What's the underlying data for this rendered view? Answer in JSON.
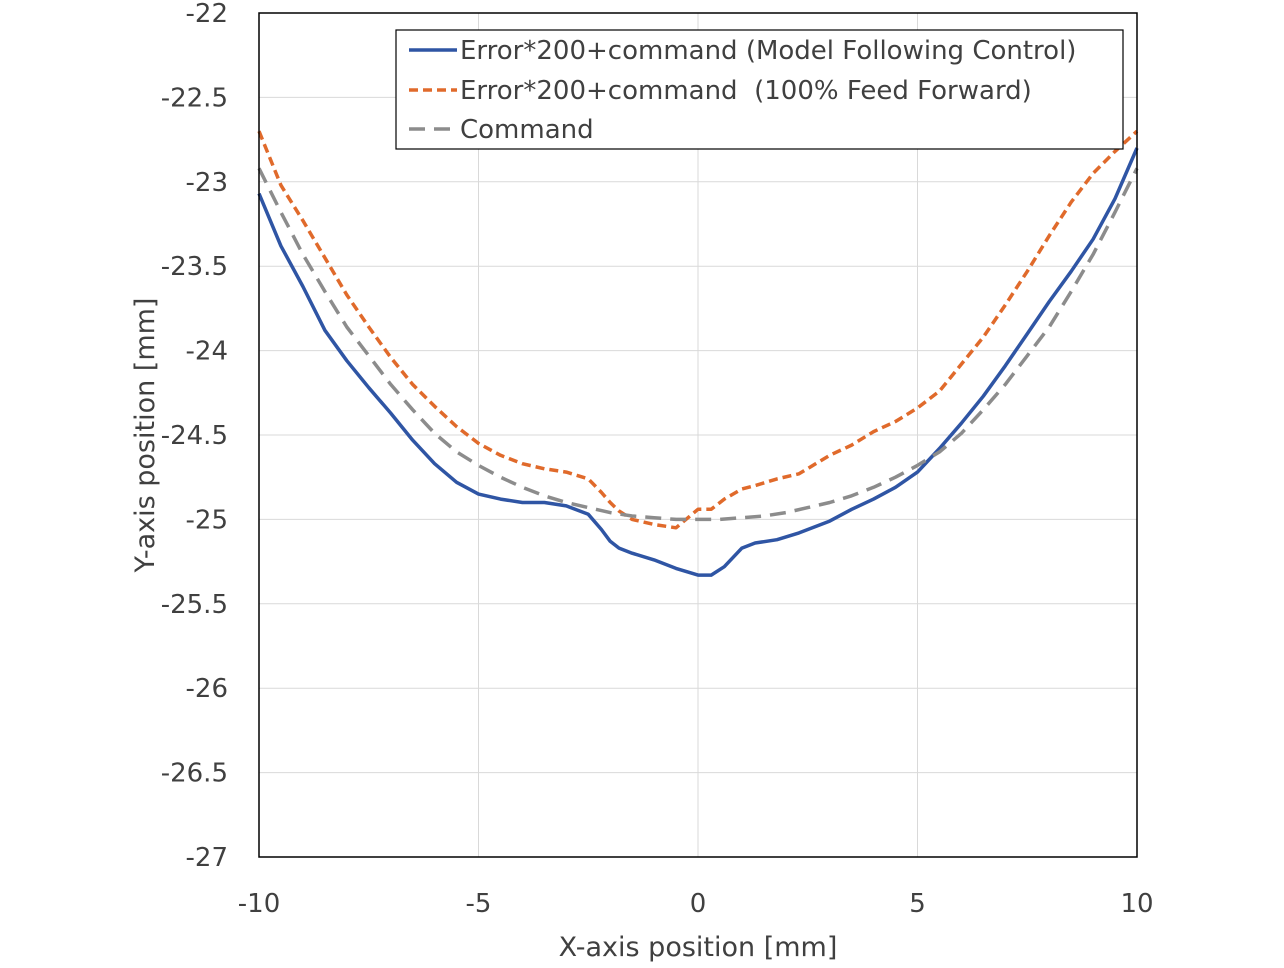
{
  "chart_data": {
    "type": "line",
    "title": "",
    "xlabel": "X-axis position [mm]",
    "ylabel": "Y-axis  position [mm]",
    "xlim": [
      -10,
      10
    ],
    "ylim": [
      -27,
      -22
    ],
    "x_ticks": [
      -10,
      -5,
      0,
      5,
      10
    ],
    "y_ticks": [
      -22,
      -22.5,
      -23,
      -23.5,
      -24,
      -24.5,
      -25,
      -25.5,
      -26,
      -26.5,
      -27
    ],
    "x_tick_labels": [
      "-10",
      "-5",
      "0",
      "5",
      "10"
    ],
    "y_tick_labels": [
      "-22",
      "-22.5",
      "-23",
      "-23.5",
      "-24",
      "-24.5",
      "-25",
      "-25.5",
      "-26",
      "-26.5",
      "-27"
    ],
    "grid": true,
    "legend_position": "top-right",
    "series": [
      {
        "name": "Error*200+command (Model Following Control)",
        "color": "#2f55a4",
        "dash": "solid",
        "x": [
          -10,
          -9.5,
          -9,
          -8.5,
          -8,
          -7.5,
          -7,
          -6.5,
          -6,
          -5.5,
          -5,
          -4.5,
          -4,
          -3.5,
          -3,
          -2.5,
          -2.2,
          -2,
          -1.8,
          -1.5,
          -1,
          -0.5,
          0,
          0.3,
          0.6,
          1,
          1.3,
          1.8,
          2.3,
          3,
          3.5,
          4,
          4.5,
          5,
          5.5,
          6,
          6.5,
          7,
          7.5,
          8,
          8.5,
          9,
          9.5,
          10
        ],
        "y": [
          -23.07,
          -23.38,
          -23.62,
          -23.88,
          -24.06,
          -24.22,
          -24.37,
          -24.53,
          -24.67,
          -24.78,
          -24.85,
          -24.88,
          -24.9,
          -24.9,
          -24.92,
          -24.97,
          -25.06,
          -25.13,
          -25.17,
          -25.2,
          -25.24,
          -25.29,
          -25.33,
          -25.33,
          -25.28,
          -25.17,
          -25.14,
          -25.12,
          -25.08,
          -25.01,
          -24.94,
          -24.88,
          -24.81,
          -24.72,
          -24.58,
          -24.43,
          -24.27,
          -24.09,
          -23.9,
          -23.71,
          -23.53,
          -23.34,
          -23.1,
          -22.8
        ]
      },
      {
        "name": "Error*200+command  (100% Feed Forward)",
        "color": "#e06a2b",
        "dash": "dashed",
        "x": [
          -10,
          -9.5,
          -9,
          -8.5,
          -8,
          -7.5,
          -7,
          -6.5,
          -6,
          -5.5,
          -5,
          -4.5,
          -4,
          -3.5,
          -3,
          -2.5,
          -2.2,
          -2,
          -1.8,
          -1.5,
          -1,
          -0.5,
          0,
          0.3,
          0.6,
          1,
          1.3,
          1.8,
          2.3,
          3,
          3.5,
          4,
          4.5,
          5,
          5.5,
          6,
          6.5,
          7,
          7.5,
          8,
          8.5,
          9,
          9.5,
          10
        ],
        "y": [
          -22.7,
          -23.02,
          -23.23,
          -23.45,
          -23.67,
          -23.86,
          -24.04,
          -24.2,
          -24.33,
          -24.45,
          -24.55,
          -24.62,
          -24.67,
          -24.7,
          -24.72,
          -24.76,
          -24.84,
          -24.9,
          -24.95,
          -25,
          -25.03,
          -25.05,
          -24.94,
          -24.94,
          -24.88,
          -24.82,
          -24.8,
          -24.76,
          -24.73,
          -24.62,
          -24.56,
          -24.48,
          -24.42,
          -24.34,
          -24.24,
          -24.08,
          -23.92,
          -23.73,
          -23.53,
          -23.32,
          -23.12,
          -22.95,
          -22.82,
          -22.7
        ]
      },
      {
        "name": "Command",
        "color": "#8c8c8c",
        "dash": "dashed",
        "x": [
          -10,
          -9.5,
          -9,
          -8.5,
          -8,
          -7.5,
          -7,
          -6.5,
          -6,
          -5.5,
          -5,
          -4.5,
          -4,
          -3.5,
          -3,
          -2.5,
          -2,
          -1.5,
          -1,
          -0.5,
          0,
          0.5,
          1,
          1.5,
          2,
          2.5,
          3,
          3.5,
          4,
          4.5,
          5,
          5.5,
          6,
          6.5,
          7,
          7.5,
          8,
          8.5,
          9,
          9.5,
          10
        ],
        "y": [
          -22.92,
          -23.18,
          -23.43,
          -23.65,
          -23.86,
          -24.03,
          -24.2,
          -24.35,
          -24.49,
          -24.6,
          -24.68,
          -24.75,
          -24.81,
          -24.86,
          -24.9,
          -24.93,
          -24.96,
          -24.98,
          -24.99,
          -25,
          -25,
          -25,
          -24.99,
          -24.98,
          -24.96,
          -24.93,
          -24.9,
          -24.86,
          -24.81,
          -24.75,
          -24.68,
          -24.6,
          -24.49,
          -24.35,
          -24.2,
          -24.03,
          -23.86,
          -23.65,
          -23.43,
          -23.18,
          -22.92
        ]
      }
    ]
  }
}
